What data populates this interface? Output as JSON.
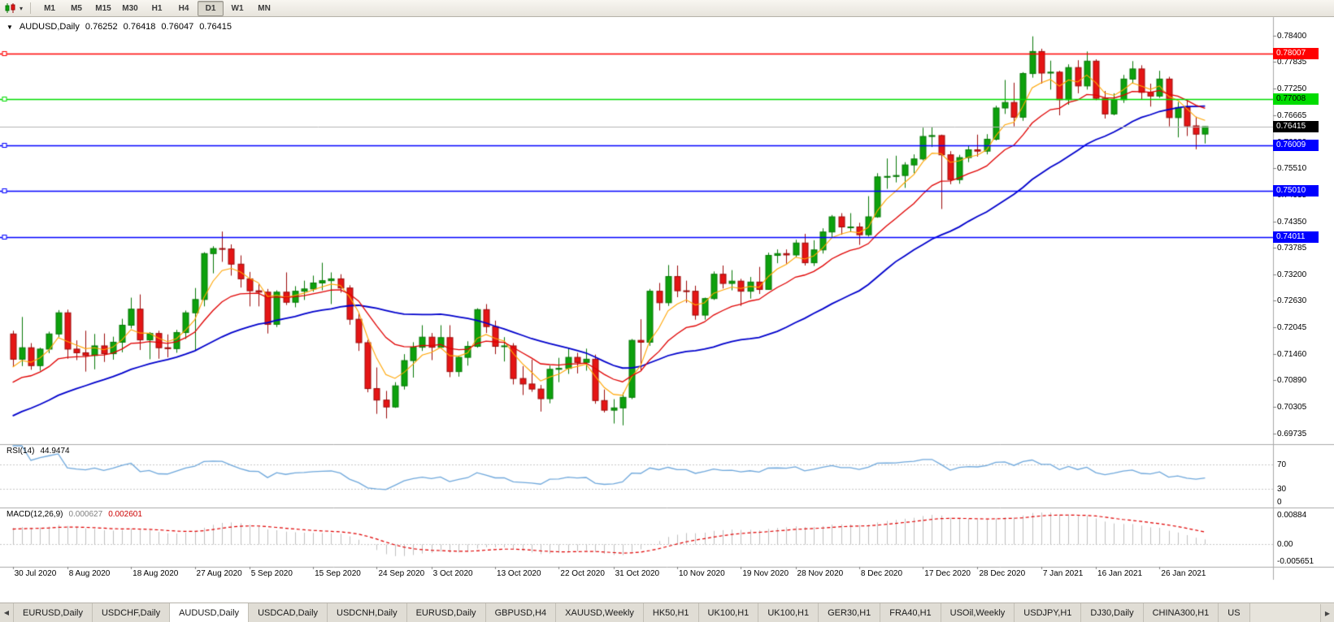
{
  "icons": {
    "expand": "▼",
    "caret": "▾",
    "tab_left": "◀",
    "tab_right": "▶"
  },
  "toolbar": {
    "timeframes": [
      "M1",
      "M5",
      "M15",
      "M30",
      "H1",
      "H4",
      "D1",
      "W1",
      "MN"
    ],
    "active_timeframe": "D1"
  },
  "chart_title": {
    "symbol": "AUDUSD,Daily",
    "open": "0.76252",
    "high": "0.76418",
    "low": "0.76047",
    "close": "0.76415"
  },
  "chart_data": {
    "type": "candlestick",
    "symbol": "AUDUSD",
    "timeframe": "Daily",
    "ohlc": [
      [
        0.719,
        0.7197,
        0.7118,
        0.7135
      ],
      [
        0.7135,
        0.7227,
        0.712,
        0.716
      ],
      [
        0.716,
        0.717,
        0.7112,
        0.7121
      ],
      [
        0.7121,
        0.716,
        0.711,
        0.7157
      ],
      [
        0.7157,
        0.7195,
        0.7148,
        0.719
      ],
      [
        0.719,
        0.7242,
        0.7183,
        0.7236
      ],
      [
        0.7236,
        0.7243,
        0.7136,
        0.7157
      ],
      [
        0.7157,
        0.7176,
        0.7133,
        0.7149
      ],
      [
        0.7149,
        0.7197,
        0.7108,
        0.7143
      ],
      [
        0.7143,
        0.719,
        0.7113,
        0.7164
      ],
      [
        0.7164,
        0.7191,
        0.7129,
        0.7147
      ],
      [
        0.7147,
        0.7184,
        0.7134,
        0.7172
      ],
      [
        0.7172,
        0.7223,
        0.715,
        0.7209
      ],
      [
        0.7209,
        0.7269,
        0.7202,
        0.7244
      ],
      [
        0.7244,
        0.7276,
        0.7155,
        0.7177
      ],
      [
        0.7177,
        0.7194,
        0.7135,
        0.7191
      ],
      [
        0.7191,
        0.7197,
        0.7136,
        0.716
      ],
      [
        0.716,
        0.7189,
        0.7139,
        0.7158
      ],
      [
        0.7158,
        0.7199,
        0.7149,
        0.7193
      ],
      [
        0.7193,
        0.7241,
        0.7179,
        0.7236
      ],
      [
        0.7236,
        0.729,
        0.7155,
        0.7265
      ],
      [
        0.7265,
        0.7368,
        0.725,
        0.7365
      ],
      [
        0.7365,
        0.7381,
        0.7322,
        0.7376
      ],
      [
        0.7376,
        0.7413,
        0.7347,
        0.7375
      ],
      [
        0.7375,
        0.7385,
        0.7317,
        0.7342
      ],
      [
        0.7342,
        0.7361,
        0.7291,
        0.731
      ],
      [
        0.731,
        0.7325,
        0.725,
        0.7284
      ],
      [
        0.7284,
        0.7298,
        0.725,
        0.7281
      ],
      [
        0.7281,
        0.7288,
        0.7191,
        0.7211
      ],
      [
        0.7211,
        0.7285,
        0.7205,
        0.7281
      ],
      [
        0.7281,
        0.7324,
        0.7253,
        0.7259
      ],
      [
        0.7259,
        0.7294,
        0.7248,
        0.7283
      ],
      [
        0.7283,
        0.7306,
        0.7264,
        0.7288
      ],
      [
        0.7288,
        0.7317,
        0.7282,
        0.7301
      ],
      [
        0.7301,
        0.7345,
        0.7285,
        0.7306
      ],
      [
        0.7306,
        0.7324,
        0.7255,
        0.731
      ],
      [
        0.731,
        0.732,
        0.728,
        0.729
      ],
      [
        0.729,
        0.7296,
        0.721,
        0.7222
      ],
      [
        0.7222,
        0.7235,
        0.7153,
        0.7171
      ],
      [
        0.7171,
        0.7177,
        0.7063,
        0.7071
      ],
      [
        0.7071,
        0.7117,
        0.7016,
        0.7046
      ],
      [
        0.7046,
        0.7066,
        0.7006,
        0.7031
      ],
      [
        0.7031,
        0.7085,
        0.7029,
        0.7077
      ],
      [
        0.7077,
        0.7146,
        0.7069,
        0.7132
      ],
      [
        0.7132,
        0.7172,
        0.7095,
        0.7161
      ],
      [
        0.7161,
        0.7209,
        0.7153,
        0.7183
      ],
      [
        0.7183,
        0.7192,
        0.7133,
        0.7161
      ],
      [
        0.7161,
        0.7209,
        0.7158,
        0.7182
      ],
      [
        0.7182,
        0.7209,
        0.7096,
        0.7108
      ],
      [
        0.7108,
        0.7143,
        0.7097,
        0.7139
      ],
      [
        0.7139,
        0.7174,
        0.7121,
        0.7163
      ],
      [
        0.7163,
        0.7246,
        0.716,
        0.7243
      ],
      [
        0.7243,
        0.7255,
        0.7192,
        0.7206
      ],
      [
        0.7206,
        0.7219,
        0.7146,
        0.7163
      ],
      [
        0.7163,
        0.7183,
        0.713,
        0.7164
      ],
      [
        0.7164,
        0.717,
        0.708,
        0.7093
      ],
      [
        0.7093,
        0.712,
        0.7057,
        0.7081
      ],
      [
        0.7081,
        0.7134,
        0.7064,
        0.707
      ],
      [
        0.707,
        0.7079,
        0.7021,
        0.7049
      ],
      [
        0.7049,
        0.7121,
        0.7039,
        0.7113
      ],
      [
        0.7113,
        0.7138,
        0.7085,
        0.7115
      ],
      [
        0.7115,
        0.7159,
        0.7103,
        0.7139
      ],
      [
        0.7139,
        0.7149,
        0.7104,
        0.7128
      ],
      [
        0.7128,
        0.7158,
        0.711,
        0.7135
      ],
      [
        0.7135,
        0.7145,
        0.7038,
        0.7045
      ],
      [
        0.7045,
        0.7069,
        0.7019,
        0.7024
      ],
      [
        0.7024,
        0.7048,
        0.6995,
        0.7029
      ],
      [
        0.7029,
        0.7062,
        0.6991,
        0.7052
      ],
      [
        0.7052,
        0.7179,
        0.7048,
        0.7176
      ],
      [
        0.7176,
        0.7222,
        0.711,
        0.7172
      ],
      [
        0.7172,
        0.7288,
        0.7164,
        0.7283
      ],
      [
        0.7283,
        0.7301,
        0.7241,
        0.7258
      ],
      [
        0.7258,
        0.734,
        0.7251,
        0.7315
      ],
      [
        0.7315,
        0.7339,
        0.727,
        0.7284
      ],
      [
        0.7284,
        0.7306,
        0.7258,
        0.7283
      ],
      [
        0.7283,
        0.7295,
        0.7221,
        0.7231
      ],
      [
        0.7231,
        0.7269,
        0.7221,
        0.7267
      ],
      [
        0.7267,
        0.7326,
        0.7264,
        0.732
      ],
      [
        0.732,
        0.7339,
        0.7289,
        0.73
      ],
      [
        0.73,
        0.7329,
        0.7285,
        0.7305
      ],
      [
        0.7305,
        0.731,
        0.7251,
        0.7283
      ],
      [
        0.7283,
        0.7314,
        0.7267,
        0.7303
      ],
      [
        0.7303,
        0.7336,
        0.7277,
        0.7287
      ],
      [
        0.7287,
        0.7367,
        0.7286,
        0.7361
      ],
      [
        0.7361,
        0.7374,
        0.7344,
        0.7365
      ],
      [
        0.7365,
        0.7374,
        0.7343,
        0.7362
      ],
      [
        0.7362,
        0.7395,
        0.7357,
        0.7388
      ],
      [
        0.7388,
        0.7408,
        0.7339,
        0.7345
      ],
      [
        0.7345,
        0.7394,
        0.7338,
        0.7373
      ],
      [
        0.7373,
        0.742,
        0.7365,
        0.7412
      ],
      [
        0.7412,
        0.7449,
        0.74,
        0.7445
      ],
      [
        0.7445,
        0.7453,
        0.7406,
        0.7423
      ],
      [
        0.7423,
        0.7453,
        0.7413,
        0.7423
      ],
      [
        0.7423,
        0.7432,
        0.7384,
        0.7406
      ],
      [
        0.7406,
        0.749,
        0.7402,
        0.7445
      ],
      [
        0.7445,
        0.754,
        0.7443,
        0.7532
      ],
      [
        0.7532,
        0.7572,
        0.7506,
        0.7533
      ],
      [
        0.7533,
        0.7578,
        0.752,
        0.7535
      ],
      [
        0.7535,
        0.7564,
        0.7508,
        0.7558
      ],
      [
        0.7558,
        0.7581,
        0.754,
        0.7571
      ],
      [
        0.7571,
        0.7639,
        0.7568,
        0.762
      ],
      [
        0.762,
        0.7641,
        0.7597,
        0.7622
      ],
      [
        0.7622,
        0.7624,
        0.7462,
        0.758
      ],
      [
        0.758,
        0.7588,
        0.7516,
        0.7526
      ],
      [
        0.7526,
        0.758,
        0.7517,
        0.7574
      ],
      [
        0.7574,
        0.76,
        0.7564,
        0.7591
      ],
      [
        0.7591,
        0.7624,
        0.7576,
        0.7588
      ],
      [
        0.7588,
        0.7625,
        0.7581,
        0.7614
      ],
      [
        0.7614,
        0.7687,
        0.7611,
        0.7682
      ],
      [
        0.7682,
        0.7743,
        0.7669,
        0.7694
      ],
      [
        0.7694,
        0.7737,
        0.7642,
        0.7662
      ],
      [
        0.7662,
        0.776,
        0.7654,
        0.7757
      ],
      [
        0.7757,
        0.7838,
        0.7748,
        0.7805
      ],
      [
        0.7805,
        0.7811,
        0.7735,
        0.7758
      ],
      [
        0.7758,
        0.7785,
        0.7722,
        0.776
      ],
      [
        0.776,
        0.7763,
        0.7666,
        0.77
      ],
      [
        0.77,
        0.7777,
        0.7689,
        0.777
      ],
      [
        0.777,
        0.7786,
        0.7714,
        0.773
      ],
      [
        0.773,
        0.7805,
        0.7722,
        0.7784
      ],
      [
        0.7784,
        0.7788,
        0.7699,
        0.7703
      ],
      [
        0.7703,
        0.7719,
        0.7659,
        0.7669
      ],
      [
        0.7669,
        0.7714,
        0.7666,
        0.77
      ],
      [
        0.77,
        0.7754,
        0.7693,
        0.7745
      ],
      [
        0.7745,
        0.7784,
        0.7736,
        0.7767
      ],
      [
        0.7767,
        0.7775,
        0.7701,
        0.7716
      ],
      [
        0.7716,
        0.7735,
        0.7685,
        0.7708
      ],
      [
        0.7708,
        0.7763,
        0.7704,
        0.7745
      ],
      [
        0.7745,
        0.775,
        0.7642,
        0.7661
      ],
      [
        0.7661,
        0.7695,
        0.7618,
        0.7683
      ],
      [
        0.7683,
        0.7698,
        0.7621,
        0.7643
      ],
      [
        0.7643,
        0.7663,
        0.7592,
        0.7625
      ],
      [
        0.76252,
        0.76418,
        0.76047,
        0.76415
      ]
    ],
    "x_labels": [
      {
        "t": "30 Jul 2020",
        "i": 0
      },
      {
        "t": "8 Aug 2020",
        "i": 6
      },
      {
        "t": "18 Aug 2020",
        "i": 13
      },
      {
        "t": "27 Aug 2020",
        "i": 20
      },
      {
        "t": "5 Sep 2020",
        "i": 26
      },
      {
        "t": "15 Sep 2020",
        "i": 33
      },
      {
        "t": "24 Sep 2020",
        "i": 40
      },
      {
        "t": "3 Oct 2020",
        "i": 46
      },
      {
        "t": "13 Oct 2020",
        "i": 53
      },
      {
        "t": "22 Oct 2020",
        "i": 60
      },
      {
        "t": "31 Oct 2020",
        "i": 66
      },
      {
        "t": "10 Nov 2020",
        "i": 73
      },
      {
        "t": "19 Nov 2020",
        "i": 80
      },
      {
        "t": "28 Nov 2020",
        "i": 86
      },
      {
        "t": "8 Dec 2020",
        "i": 93
      },
      {
        "t": "17 Dec 2020",
        "i": 100
      },
      {
        "t": "28 Dec 2020",
        "i": 106
      },
      {
        "t": "7 Jan 2021",
        "i": 113
      },
      {
        "t": "16 Jan 2021",
        "i": 119
      },
      {
        "t": "26 Jan 2021",
        "i": 126
      }
    ],
    "y_ticks": [
      "0.78400",
      "0.77835",
      "0.77250",
      "0.76665",
      "0.76080",
      "0.75510",
      "0.74935",
      "0.74350",
      "0.73785",
      "0.73200",
      "0.72630",
      "0.72045",
      "0.71460",
      "0.70890",
      "0.70305",
      "0.69735"
    ],
    "hlines": [
      {
        "value": 0.78007,
        "label": "0.78007",
        "color": "#ff0000",
        "text_color": "#ffffff"
      },
      {
        "value": 0.77008,
        "label": "0.77008",
        "color": "#00dc00",
        "text_color": "#000000"
      },
      {
        "value": 0.76009,
        "label": "0.76009",
        "color": "#0000ff",
        "text_color": "#ffffff"
      },
      {
        "value": 0.7501,
        "label": "0.75010",
        "color": "#0000ff",
        "text_color": "#ffffff"
      },
      {
        "value": 0.74011,
        "label": "0.74011",
        "color": "#0000ff",
        "text_color": "#ffffff"
      }
    ],
    "current_price": {
      "label": "0.76415",
      "value": 0.76415,
      "bg": "#000000",
      "text_color": "#ffffff",
      "line_color": "#b4b4b4"
    },
    "candle_colors": {
      "up": "#0da10d",
      "up_border": "#067806",
      "down": "#e51515",
      "down_border": "#9c0a0a"
    },
    "moving_averages": [
      {
        "period": 30,
        "type": "sma",
        "color": "#0000cc",
        "width": 1.8
      },
      {
        "period": 5,
        "type": "ema",
        "color": "#ffa500",
        "width": 1.1
      },
      {
        "period": 13,
        "type": "ema",
        "color": "#e00000",
        "width": 1.3
      }
    ],
    "ma_seed": {
      "bars": 30,
      "start_value": 0.688
    },
    "rsi": {
      "label": "RSI(14)",
      "value": "44.9474",
      "period": 14,
      "levels": [
        70,
        30,
        0
      ],
      "color": "#6fa8dc",
      "level_line_color": "#c8c8c8"
    },
    "macd": {
      "label": "MACD(12,26,9)",
      "value_main": "0.000627",
      "value_signal": "0.002601",
      "fast": 12,
      "slow": 26,
      "signal": 9,
      "ticks": [
        "0.00884",
        "0.00",
        "-0.005651"
      ],
      "histogram_color": "#c0c0c0",
      "signal_color": "#e00000",
      "zero_line_color": "#c8c8c8"
    }
  },
  "tabs": {
    "active_index": 2,
    "items": [
      "EURUSD,Daily",
      "USDCHF,Daily",
      "AUDUSD,Daily",
      "USDCAD,Daily",
      "USDCNH,Daily",
      "EURUSD,Daily",
      "GBPUSD,H4",
      "XAUUSD,Weekly",
      "HK50,H1",
      "UK100,H1",
      "UK100,H1",
      "GER30,H1",
      "FRA40,H1",
      "USOil,Weekly",
      "USDJPY,H1",
      "DJ30,Daily",
      "CHINA300,H1",
      "US"
    ]
  }
}
